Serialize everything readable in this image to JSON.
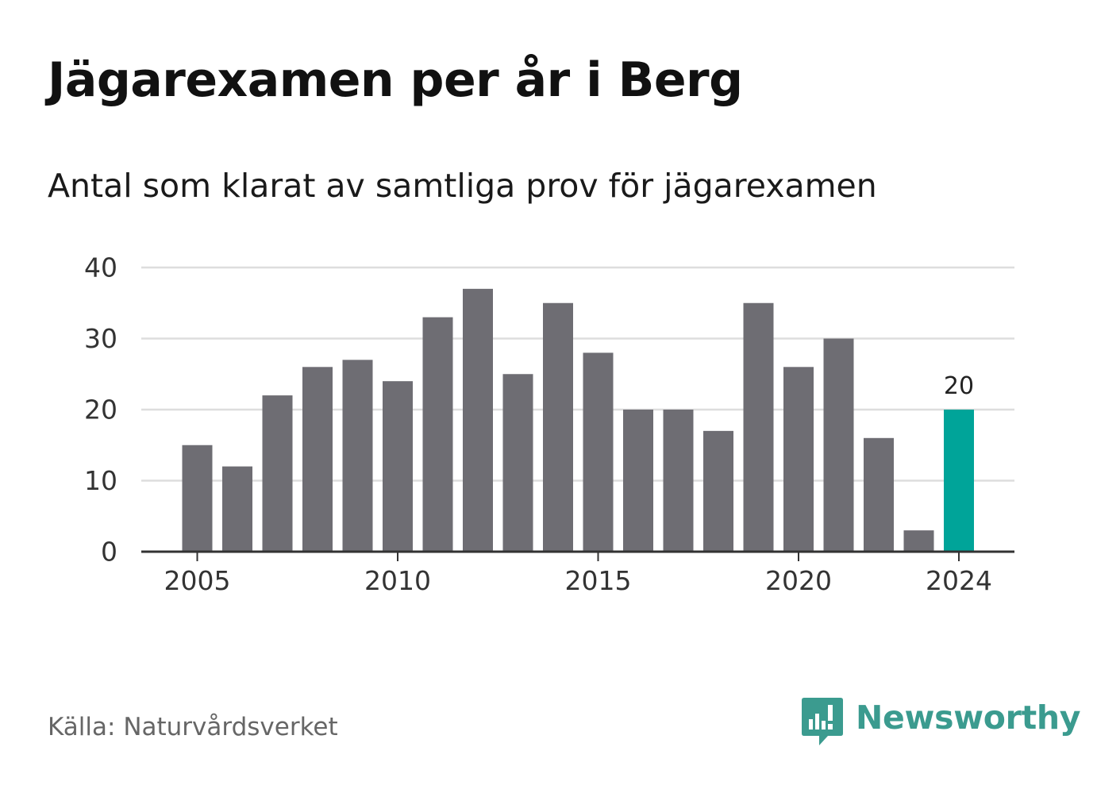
{
  "header": {
    "title": "Jägarexamen per år i Berg",
    "subtitle": "Antal som klarat av samtliga prov för jägarexamen"
  },
  "chart_data": {
    "type": "bar",
    "title": "Jägarexamen per år i Berg",
    "subtitle": "Antal som klarat av samtliga prov för jägarexamen",
    "xlabel": "",
    "ylabel": "",
    "categories": [
      2005,
      2006,
      2007,
      2008,
      2009,
      2010,
      2011,
      2012,
      2013,
      2014,
      2015,
      2016,
      2017,
      2018,
      2019,
      2020,
      2021,
      2022,
      2023,
      2024
    ],
    "values": [
      15,
      12,
      22,
      26,
      27,
      24,
      33,
      37,
      25,
      35,
      28,
      20,
      20,
      17,
      35,
      26,
      30,
      16,
      3,
      20
    ],
    "ylim": [
      0,
      40
    ],
    "yticks": [
      0,
      10,
      20,
      30,
      40
    ],
    "xticks": [
      2005,
      2010,
      2015,
      2020,
      2024
    ],
    "grid": true,
    "bar_color": "#6e6d73",
    "highlight_color": "#00a499",
    "highlight_category": 2024,
    "data_labels": [
      {
        "category": 2024,
        "text": "20"
      }
    ]
  },
  "footer": {
    "source_label": "Källa:",
    "source_name": "Naturvårdsverket",
    "brand_name": "Newsworthy",
    "brand_color": "#3b9b8f",
    "brand_icon": "newsworthy-logo-icon"
  }
}
